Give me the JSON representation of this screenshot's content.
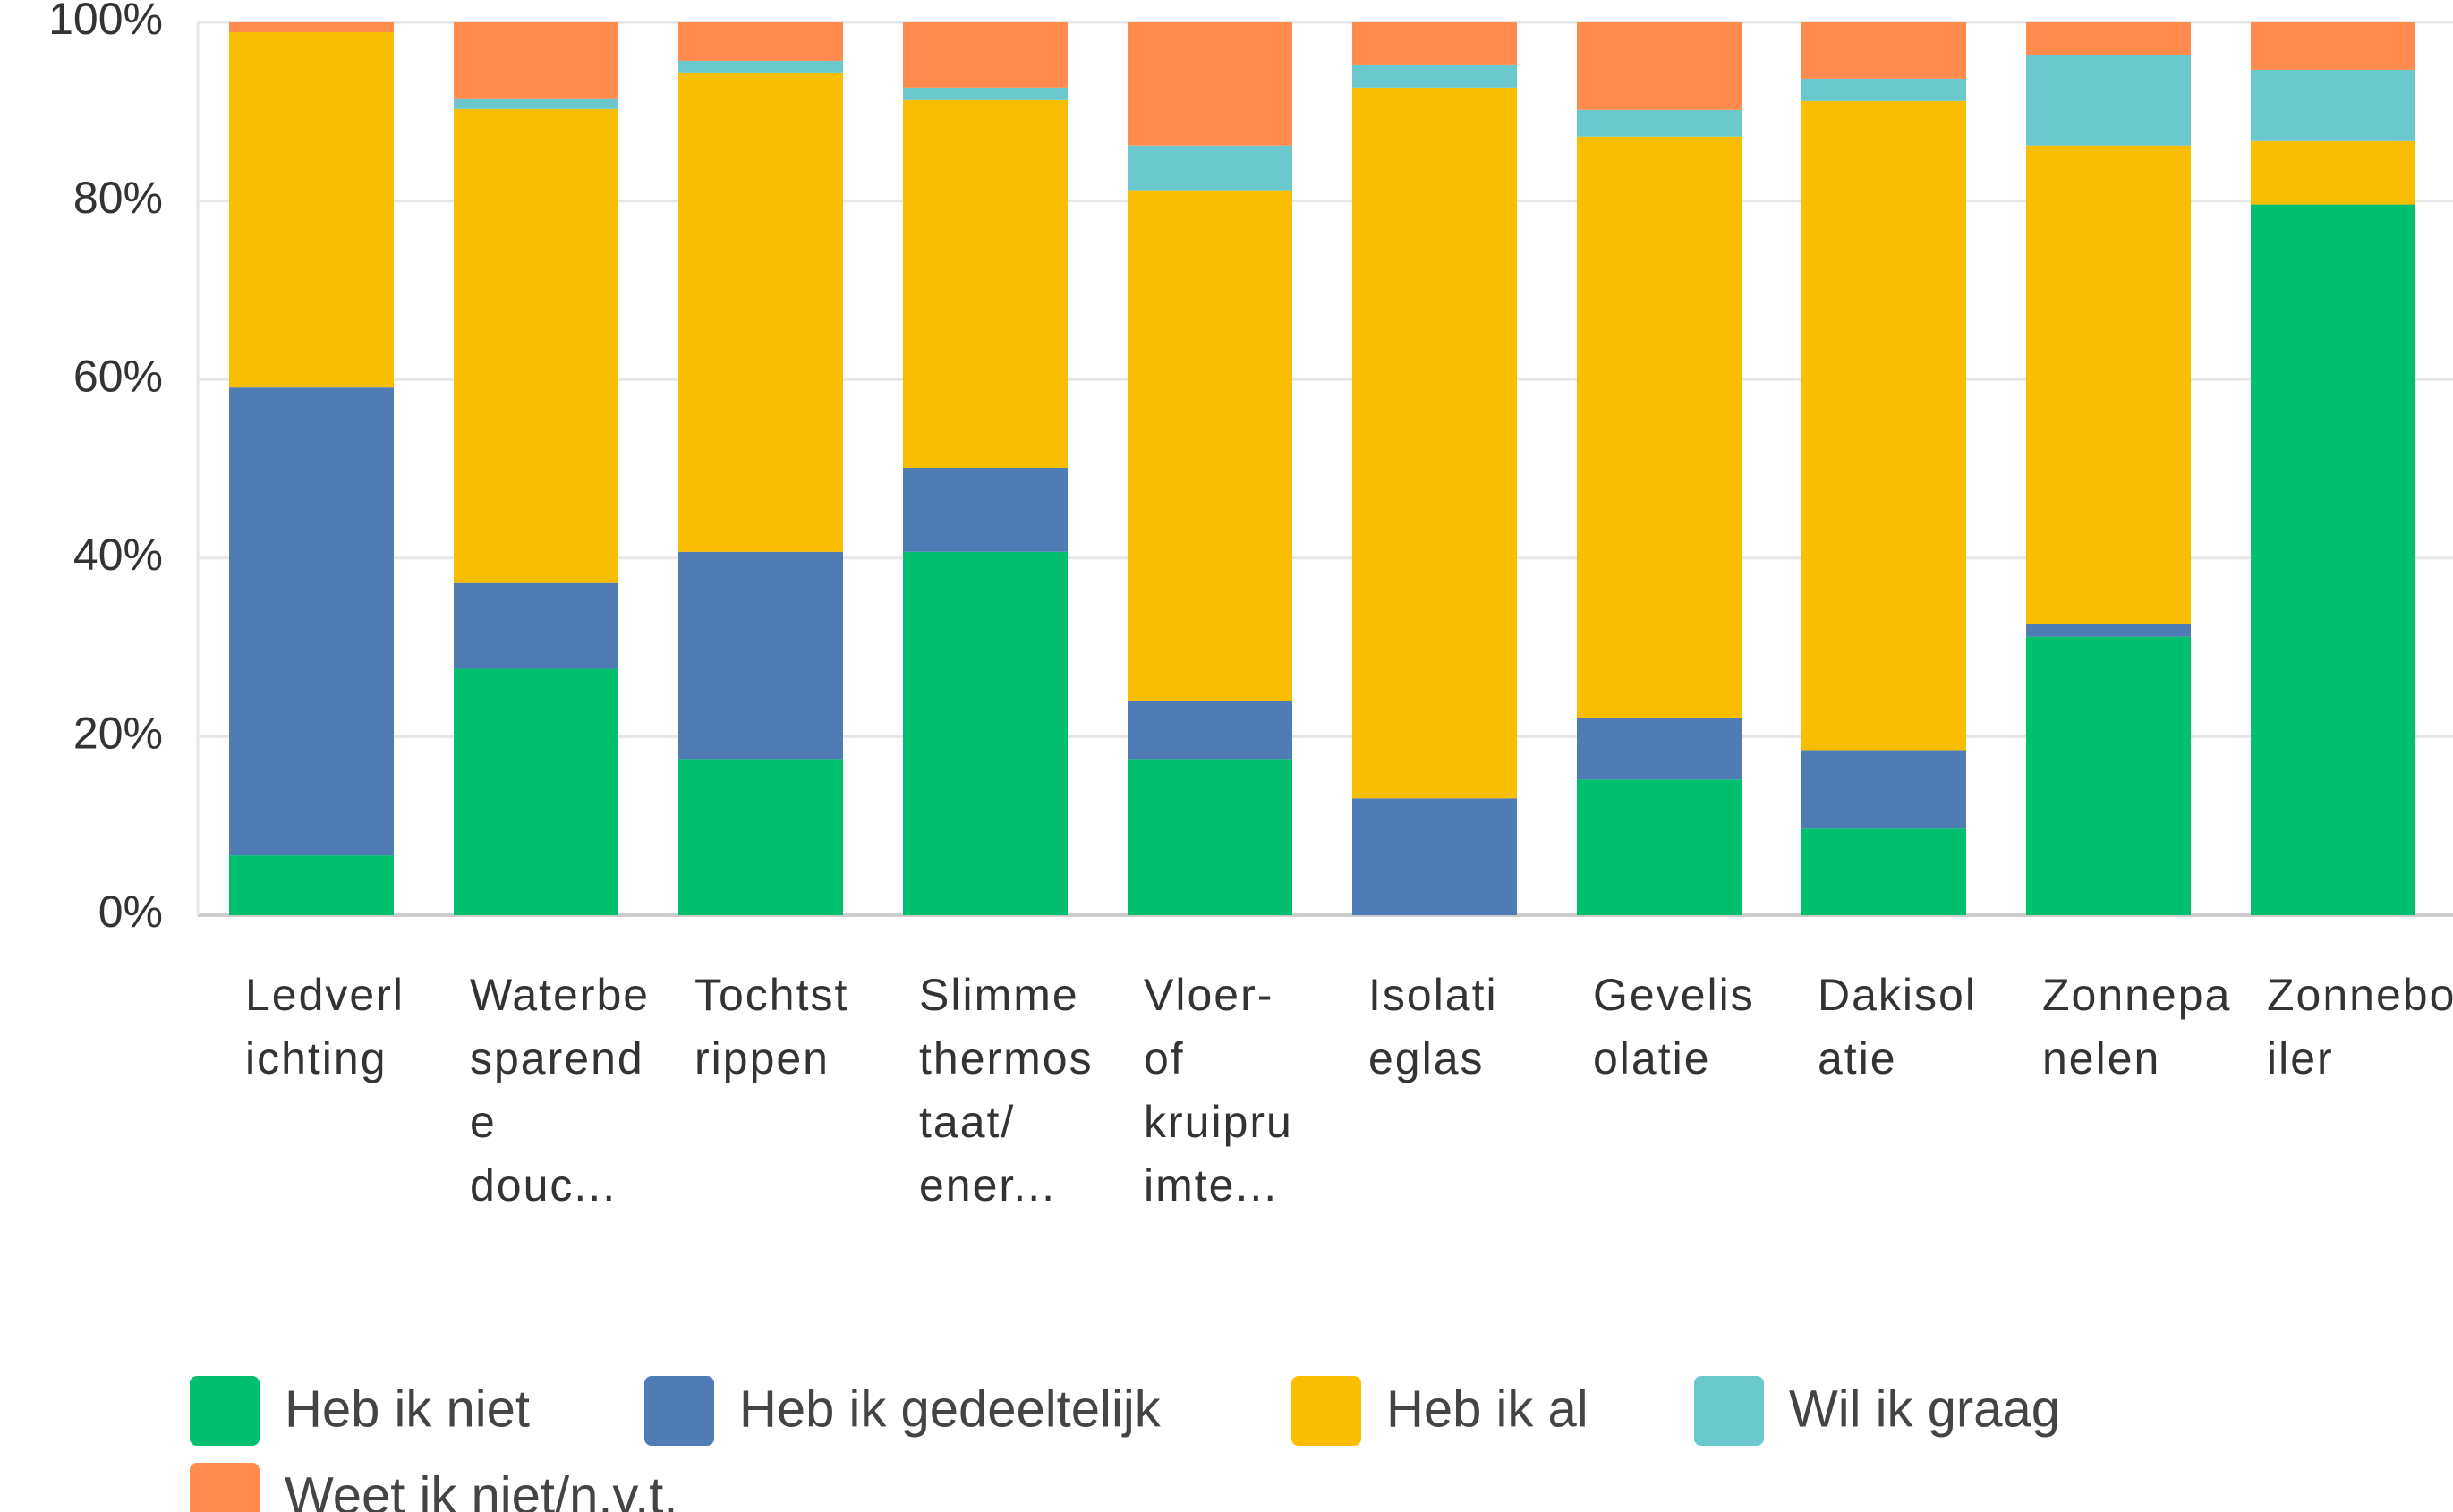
{
  "chart_data": {
    "type": "stacked_bar",
    "categories": [
      "Ledverlichting",
      "Waterbesparende douc...",
      "Tochtstrippen",
      "Slimme thermostaat/ ener...",
      "Vloer- of kruipruimte...",
      "Isolatieglas",
      "Gevelisolatie",
      "Dakisolatie",
      "Zonnepanelen",
      "Zonneboiler"
    ],
    "series": [
      {
        "name": "Heb ik niet",
        "color": "#00bf6f",
        "values": [
          6.7,
          27.6,
          17.5,
          40.7,
          17.5,
          0,
          15.2,
          9.7,
          31.2,
          79.6
        ]
      },
      {
        "name": "Heb ik gedeeltelijk",
        "color": "#507cb6",
        "values": [
          52.4,
          9.6,
          23.2,
          9.4,
          6.5,
          13.1,
          6.9,
          8.8,
          1.4,
          0
        ]
      },
      {
        "name": "Heb ik al",
        "color": "#f9be00",
        "values": [
          39.8,
          53.1,
          53.6,
          41.2,
          57.2,
          79.6,
          65.1,
          72.7,
          53.6,
          7.1
        ]
      },
      {
        "name": "Wil ik graag",
        "color": "#6bc8cd",
        "values": [
          0,
          1.1,
          1.4,
          1.4,
          5.0,
          2.5,
          3.0,
          2.5,
          10.1,
          8.0
        ]
      },
      {
        "name": "Weet ik niet/n.v.t.",
        "color": "#ff8b4f",
        "values": [
          1.1,
          8.6,
          4.3,
          7.3,
          13.8,
          4.8,
          9.8,
          6.3,
          3.7,
          5.3
        ]
      }
    ],
    "ylim": [
      0,
      100
    ],
    "yticks": [
      {
        "value": 0,
        "label": "0%"
      },
      {
        "value": 20,
        "label": "20%"
      },
      {
        "value": 40,
        "label": "40%"
      },
      {
        "value": 60,
        "label": "60%"
      },
      {
        "value": 80,
        "label": "80%"
      },
      {
        "value": 100,
        "label": "100%"
      }
    ],
    "grid": true
  }
}
